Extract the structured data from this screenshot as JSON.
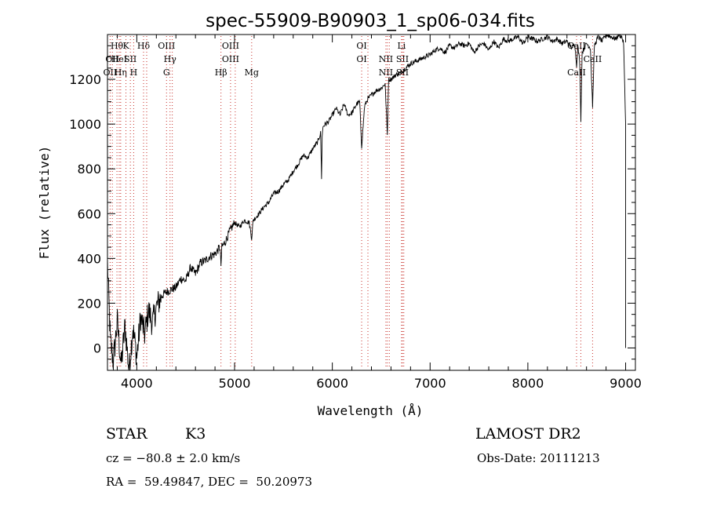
{
  "chart_data": {
    "type": "line",
    "title": "spec-55909-B90903_1_sp06-034.fits",
    "xlabel": "Wavelength (Å)",
    "ylabel": "Flux (relative)",
    "xlim": [
      3700,
      9100
    ],
    "ylim": [
      -100,
      1400
    ],
    "xticks": [
      "4000",
      "5000",
      "6000",
      "7000",
      "8000",
      "9000"
    ],
    "yticks": [
      "0",
      "200",
      "400",
      "600",
      "800",
      "1000",
      "1200"
    ],
    "grid": false,
    "series": [
      {
        "x": [
          3700,
          3730,
          3760,
          3800,
          3840,
          3880,
          3920,
          3960,
          4000,
          4040,
          4080,
          4120,
          4160,
          4200,
          4250,
          4300,
          4350,
          4400,
          4450,
          4500,
          4550,
          4600,
          4650,
          4700,
          4750,
          4800,
          4850,
          4861,
          4870,
          4900,
          4950,
          5000,
          5050,
          5100,
          5150,
          5175,
          5190,
          5250,
          5300,
          5350,
          5400,
          5450,
          5500,
          5550,
          5600,
          5650,
          5700,
          5750,
          5800,
          5850,
          5880,
          5890,
          5896,
          5905,
          5930,
          5960,
          6000,
          6040,
          6080,
          6120,
          6160,
          6200,
          6250,
          6280,
          6300,
          6330,
          6360,
          6400,
          6450,
          6500,
          6540,
          6563,
          6575,
          6600,
          6650,
          6700,
          6750,
          6800,
          6850,
          6900,
          6950,
          7000,
          7050,
          7100,
          7150,
          7200,
          7250,
          7300,
          7350,
          7400,
          7450,
          7500,
          7550,
          7600,
          7650,
          7700,
          7750,
          7800,
          7850,
          7900,
          7950,
          8000,
          8050,
          8100,
          8150,
          8200,
          8250,
          8300,
          8350,
          8400,
          8450,
          8480,
          8498,
          8510,
          8530,
          8542,
          8555,
          8600,
          8640,
          8662,
          8680,
          8720,
          8760,
          8800,
          8850,
          8900,
          8930,
          8960,
          8980,
          9000
        ],
        "y": [
          380,
          30,
          -60,
          120,
          -80,
          100,
          -100,
          90,
          -40,
          140,
          60,
          170,
          110,
          180,
          230,
          250,
          260,
          270,
          310,
          300,
          360,
          330,
          380,
          390,
          410,
          420,
          450,
          370,
          450,
          470,
          520,
          560,
          540,
          570,
          560,
          490,
          570,
          600,
          630,
          650,
          690,
          700,
          730,
          750,
          790,
          820,
          860,
          850,
          890,
          920,
          960,
          760,
          940,
          990,
          1000,
          1010,
          1040,
          1070,
          1040,
          1090,
          1040,
          1050,
          1090,
          1100,
          900,
          1080,
          1110,
          1130,
          1150,
          1160,
          1180,
          950,
          1200,
          1200,
          1220,
          1230,
          1250,
          1270,
          1280,
          1290,
          1300,
          1310,
          1330,
          1340,
          1320,
          1350,
          1340,
          1360,
          1350,
          1360,
          1320,
          1350,
          1360,
          1330,
          1370,
          1340,
          1380,
          1370,
          1380,
          1390,
          1360,
          1390,
          1380,
          1370,
          1380,
          1390,
          1370,
          1380,
          1360,
          1370,
          1340,
          1360,
          1260,
          1350,
          1280,
          1020,
          1320,
          1360,
          1340,
          1080,
          1350,
          1390,
          1370,
          1400,
          1390,
          1380,
          1400,
          1390,
          1360,
          1000
        ]
      }
    ],
    "lines": [
      {
        "wl": 3727,
        "labels": [
          "OII"
        ],
        "rows": [
          2
        ]
      },
      {
        "wl": 3750,
        "labels": [
          "OII"
        ],
        "rows": [
          1
        ]
      },
      {
        "wl": 3797,
        "labels": [
          "Hθ"
        ],
        "rows": [
          0
        ]
      },
      {
        "wl": 3820,
        "labels": [
          "HeI"
        ],
        "rows": [
          1
        ]
      },
      {
        "wl": 3835,
        "labels": [
          "Hη"
        ],
        "rows": [
          2
        ]
      },
      {
        "wl": 3889,
        "labels": [
          "K"
        ],
        "rows": [
          0
        ]
      },
      {
        "wl": 3934,
        "labels": [
          "SII"
        ],
        "rows": [
          1
        ]
      },
      {
        "wl": 3968,
        "labels": [
          "H"
        ],
        "rows": [
          2
        ]
      },
      {
        "wl": 4069,
        "labels": [
          "Hδ"
        ],
        "rows": [
          0
        ]
      },
      {
        "wl": 4101,
        "labels": [],
        "rows": []
      },
      {
        "wl": 4304,
        "labels": [
          "OIII",
          "G"
        ],
        "rows": [
          0,
          2
        ]
      },
      {
        "wl": 4340,
        "labels": [
          "Hγ"
        ],
        "rows": [
          1
        ]
      },
      {
        "wl": 4363,
        "labels": [],
        "rows": []
      },
      {
        "wl": 4861,
        "labels": [
          "Hβ"
        ],
        "rows": [
          2
        ]
      },
      {
        "wl": 4959,
        "labels": [
          "OIII",
          "OIII"
        ],
        "rows": [
          0,
          1
        ]
      },
      {
        "wl": 5007,
        "labels": [],
        "rows": []
      },
      {
        "wl": 5175,
        "labels": [
          "Mg"
        ],
        "rows": [
          2
        ]
      },
      {
        "wl": 6300,
        "labels": [
          "OI",
          "OI"
        ],
        "rows": [
          0,
          1
        ]
      },
      {
        "wl": 6364,
        "labels": [],
        "rows": []
      },
      {
        "wl": 6548,
        "labels": [
          "NII",
          "NII"
        ],
        "rows": [
          1,
          2
        ]
      },
      {
        "wl": 6563,
        "labels": [],
        "rows": []
      },
      {
        "wl": 6583,
        "labels": [],
        "rows": []
      },
      {
        "wl": 6708,
        "labels": [
          "Li"
        ],
        "rows": [
          0
        ]
      },
      {
        "wl": 6717,
        "labels": [
          "SII",
          "SII"
        ],
        "rows": [
          1,
          2
        ]
      },
      {
        "wl": 6731,
        "labels": [],
        "rows": []
      },
      {
        "wl": 8498,
        "labels": [
          "CaII",
          "CaII"
        ],
        "rows": [
          0,
          2
        ]
      },
      {
        "wl": 8542,
        "labels": [],
        "rows": []
      },
      {
        "wl": 8662,
        "labels": [
          "CaII"
        ],
        "rows": [
          1
        ]
      }
    ]
  },
  "footer": {
    "object_class": "STAR",
    "subclass": "K3",
    "survey": "LAMOST DR2",
    "cz": "cz = −80.8 ± 2.0 km/s",
    "obs_date": "Obs-Date: 20111213",
    "coords": "RA =  59.49847, DEC =  50.20973"
  }
}
